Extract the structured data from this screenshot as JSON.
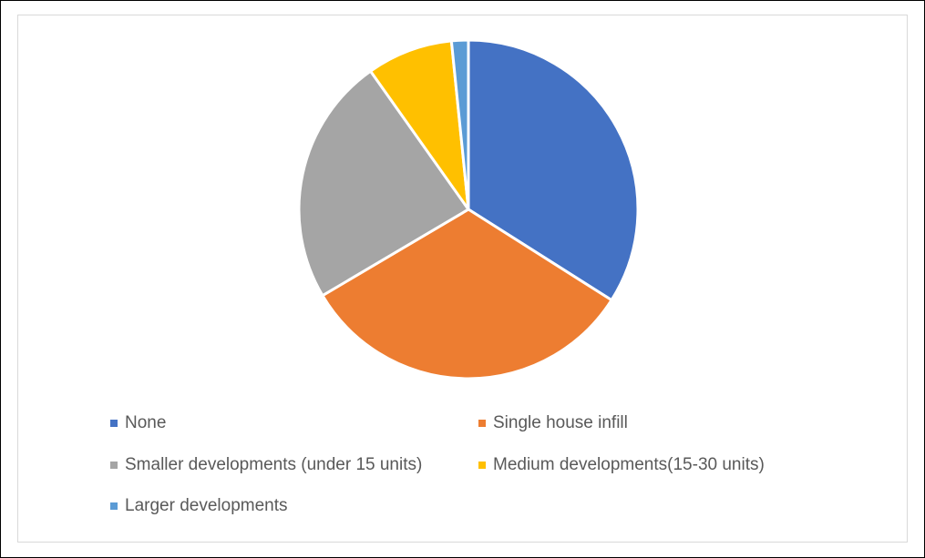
{
  "chart_data": {
    "type": "pie",
    "title": "",
    "legend_position": "bottom",
    "start_angle_deg": 0,
    "direction": "clockwise",
    "slice_border_color": "#ffffff",
    "categories": [
      "None",
      "Single house infill",
      "Smaller developments (under 15 units)",
      "Medium developments(15-30 units)",
      "Larger developments"
    ],
    "values": [
      34,
      32.5,
      23.7,
      8.2,
      1.6
    ],
    "colors": [
      "#4472c4",
      "#ed7d31",
      "#a5a5a5",
      "#ffc000",
      "#5b9bd5"
    ]
  }
}
